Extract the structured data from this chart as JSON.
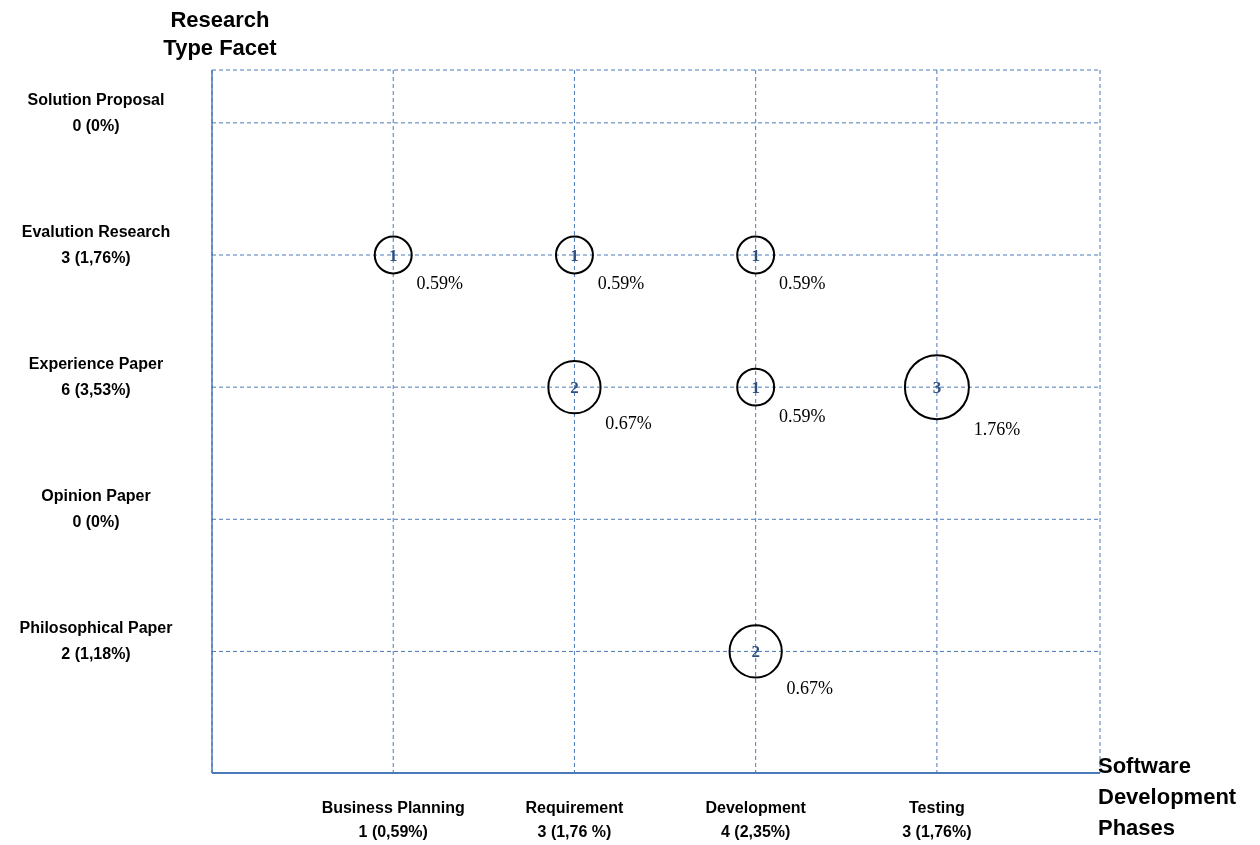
{
  "chart_data": {
    "type": "heatmap",
    "xlabel": "Software Development Phases",
    "ylabel": "Research Type Facet",
    "categories": [
      "Business Planning\n1 (0,59%)",
      "Requirement\n3 (1,76 %)",
      "Development\n4  (2,35%)",
      "Testing\n3 (1,76%)"
    ],
    "y_categories": [
      "Solution Proposal\n0 (0%)",
      "Evalution Research\n3 (1,76%)",
      "Experience Paper\n6 (3,53%)",
      "Opinion Paper\n0 (0%)",
      "Philosophical Paper\n2 (1,18%)"
    ],
    "cells": [
      [
        null,
        null,
        null,
        null
      ],
      [
        1,
        1,
        1,
        null
      ],
      [
        null,
        2,
        1,
        3
      ],
      [
        null,
        null,
        null,
        null
      ],
      [
        null,
        null,
        2,
        null
      ]
    ],
    "annotations": [
      "0.59%",
      "0.59%",
      "0.59%",
      "0.67%",
      "0.59%",
      "1.76%",
      "0.67%"
    ],
    "color": "#000000",
    "data_labels": true,
    "grid": true
  }
}
